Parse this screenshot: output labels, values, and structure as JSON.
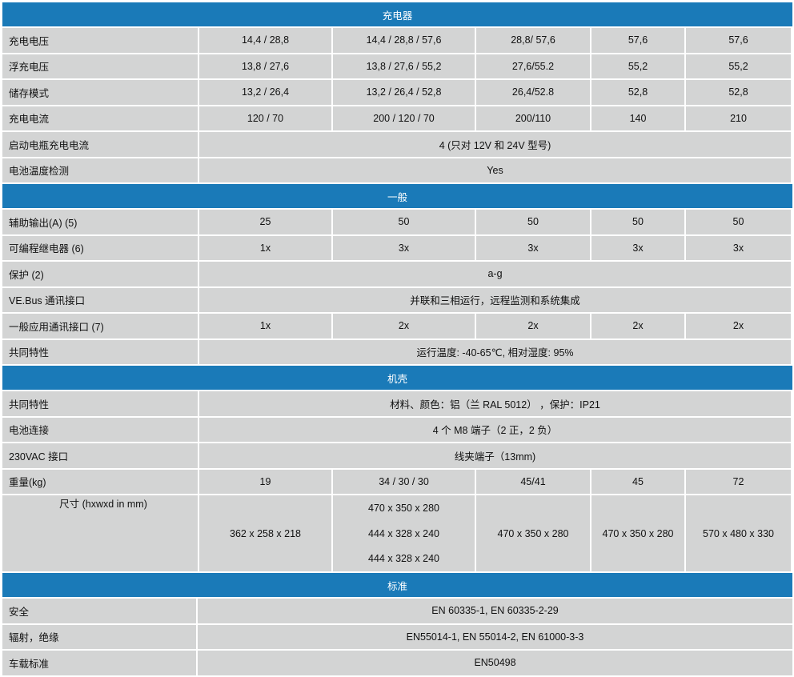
{
  "colors": {
    "header": "#1a7ab8",
    "cell": "#d3d4d4"
  },
  "sections": [
    {
      "title": "充电器",
      "rows": [
        {
          "label": "充电电压",
          "values": [
            "14,4 / 28,8",
            "14,4 / 28,8 / 57,6",
            "28,8/ 57,6",
            "57,6",
            "57,6"
          ]
        },
        {
          "label": "浮充电压",
          "values": [
            "13,8 / 27,6",
            "13,8 / 27,6 / 55,2",
            "27,6/55.2",
            "55,2",
            "55,2"
          ]
        },
        {
          "label": "储存模式",
          "values": [
            "13,2 / 26,4",
            "13,2 / 26,4 / 52,8",
            "26,4/52.8",
            "52,8",
            "52,8"
          ]
        },
        {
          "label": "充电电流",
          "values": [
            "120 / 70",
            "200 / 120 / 70",
            "200/110",
            "140",
            "210"
          ]
        },
        {
          "label": "启动电瓶充电电流",
          "span": "4 (只对 12V 和  24V  型号)"
        },
        {
          "label": "电池温度检测",
          "span": "Yes"
        }
      ]
    },
    {
      "title": "一般",
      "rows": [
        {
          "label": "辅助输出(A)    (5)",
          "values": [
            "25",
            "50",
            "50",
            "50",
            "50"
          ]
        },
        {
          "label": "可编程继电器    (6)",
          "values": [
            "1x",
            "3x",
            "3x",
            "3x",
            "3x"
          ]
        },
        {
          "label": "保护   (2)",
          "span": "a-g"
        },
        {
          "label": "VE.Bus 通讯接口",
          "span": "并联和三相运行，远程监测和系统集成"
        },
        {
          "label": "一般应用通讯接口 (7)",
          "values": [
            "1x",
            "2x",
            "2x",
            "2x",
            "2x"
          ]
        },
        {
          "label": "共同特性",
          "span": "运行温度: -40-65℃, 相对湿度: 95%"
        }
      ]
    },
    {
      "title": "机壳",
      "rows": [
        {
          "label": "共同特性",
          "span": "材料、颜色：铝（兰  RAL 5012）  ，保护：IP21"
        },
        {
          "label": "电池连接",
          "span": "4 个 M8 端子（2 正，2 负）"
        },
        {
          "label": "230VAC 接口",
          "span": "线夹端子（13mm)"
        },
        {
          "label": "重量(kg)",
          "values": [
            "19",
            "34 / 30 / 30",
            "45/41",
            "45",
            "72"
          ]
        },
        {
          "label": "尺寸  (hxwxd in mm)",
          "tall": true,
          "values": [
            [
              "362 x 258 x 218"
            ],
            [
              "470 x 350 x 280",
              "444 x 328 x 240",
              "444 x 328 x 240"
            ],
            [
              "470 x 350 x 280"
            ],
            [
              "470 x 350 x 280"
            ],
            [
              "570 x 480 x 330"
            ]
          ]
        }
      ]
    },
    {
      "title": "标准",
      "std": true,
      "rows": [
        {
          "label": "安全",
          "span": "EN 60335-1, EN 60335-2-29"
        },
        {
          "label": "辐射，绝缘",
          "span": "EN55014-1, EN 55014-2, EN 61000-3-3"
        },
        {
          "label": "车载标准",
          "span": "EN50498"
        }
      ]
    }
  ]
}
